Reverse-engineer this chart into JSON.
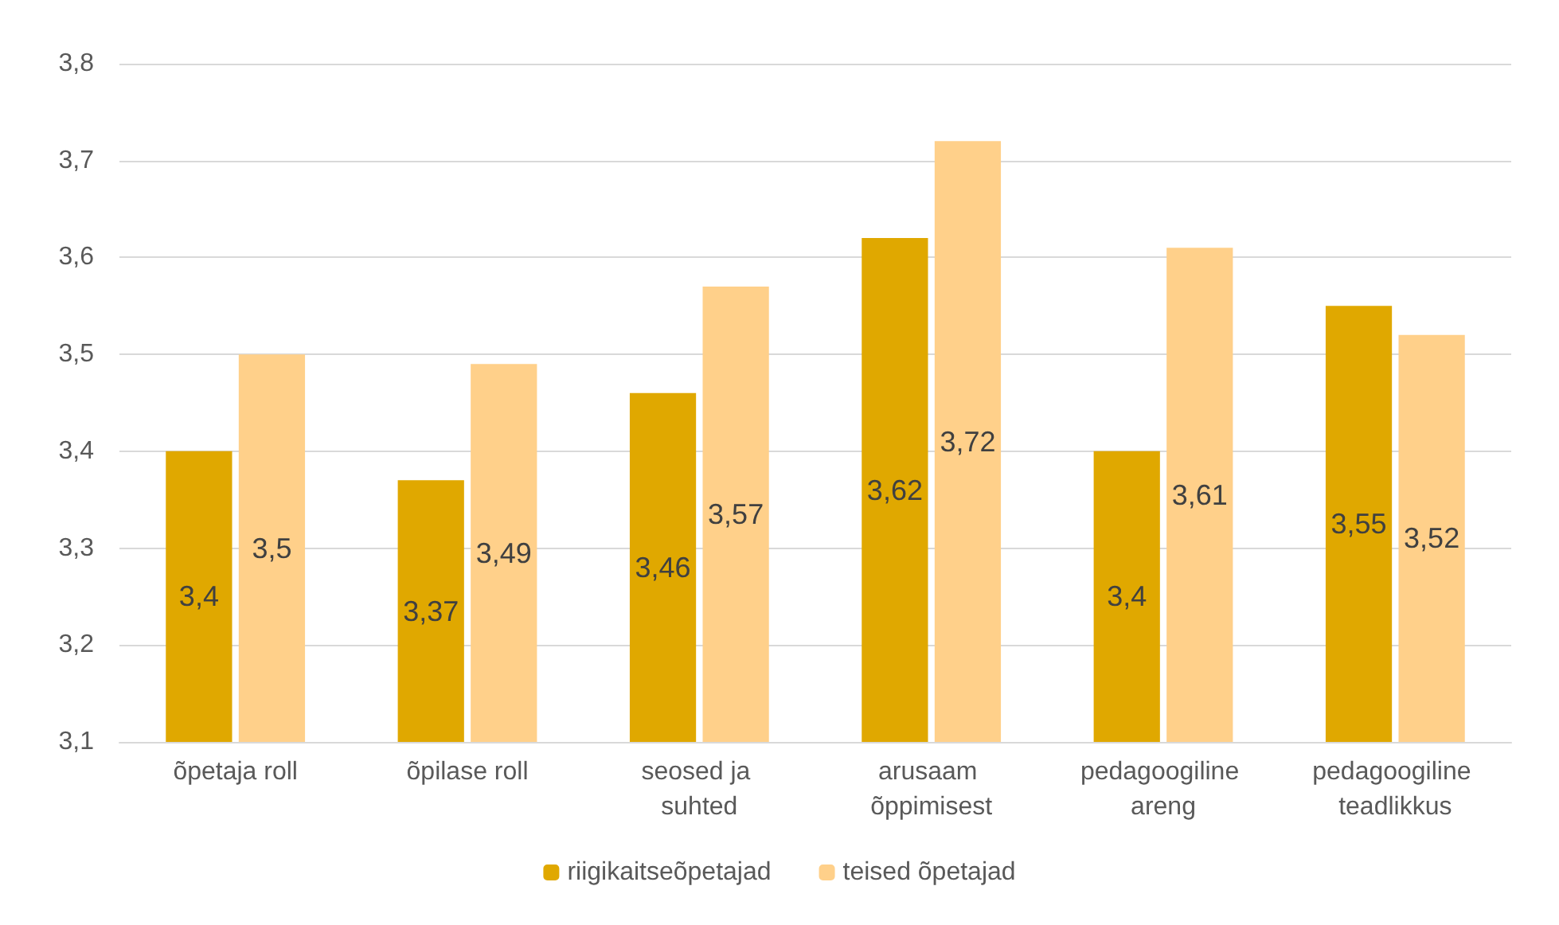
{
  "chart_data": {
    "type": "bar",
    "categories": [
      "õpetaja roll",
      "õpilase roll",
      "seosed ja suhted",
      "arusaam õppimisest",
      "pedagoogiline areng",
      "pedagoogiline teadlikkus"
    ],
    "series": [
      {
        "name": "riigikaitseõpetajad",
        "color": "#e0a800",
        "values": [
          3.4,
          3.37,
          3.46,
          3.62,
          3.4,
          3.55
        ],
        "value_labels": [
          "3,4",
          "3,37",
          "3,46",
          "3,62",
          "3,4",
          "3,55"
        ]
      },
      {
        "name": "teised õpetajad",
        "color": "#ffd08a",
        "values": [
          3.5,
          3.49,
          3.57,
          3.72,
          3.61,
          3.52
        ],
        "value_labels": [
          "3,5",
          "3,49",
          "3,57",
          "3,72",
          "3,61",
          "3,52"
        ]
      }
    ],
    "ylim": [
      3.1,
      3.8
    ],
    "yticks": [
      {
        "value": 3.1,
        "label": "3,1"
      },
      {
        "value": 3.2,
        "label": "3,2"
      },
      {
        "value": 3.3,
        "label": "3,3"
      },
      {
        "value": 3.4,
        "label": "3,4"
      },
      {
        "value": 3.5,
        "label": "3,5"
      },
      {
        "value": 3.6,
        "label": "3,6"
      },
      {
        "value": 3.7,
        "label": "3,7"
      },
      {
        "value": 3.8,
        "label": "3,8"
      }
    ],
    "grid": "y",
    "legend": "bottom"
  }
}
